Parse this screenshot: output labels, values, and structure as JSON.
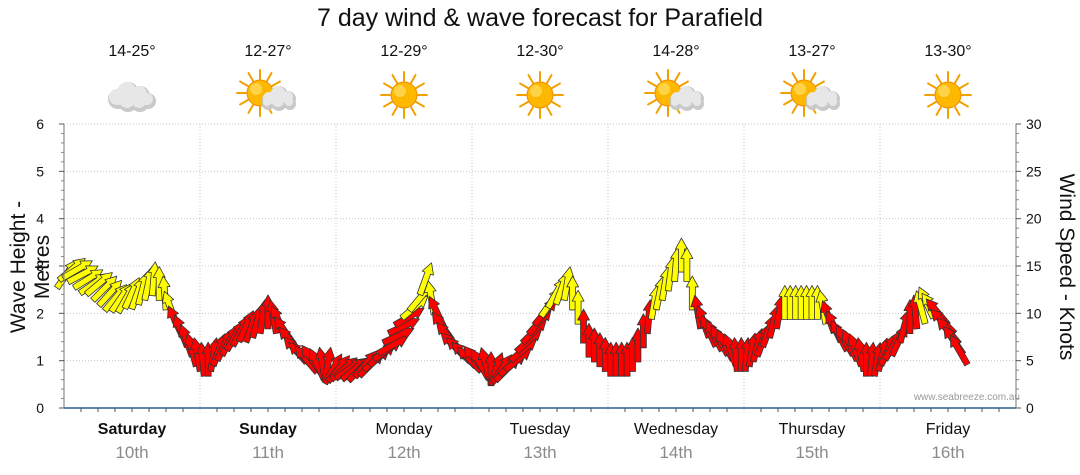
{
  "chart_data": {
    "type": "forecast-arrows",
    "title": "7 day wind & wave forecast for Parafield",
    "ylabel_left": "Wave Height - Metres",
    "ylabel_right": "Wind Speed - Knots",
    "ylim_left": [
      0,
      6
    ],
    "ylim_right": [
      0,
      30
    ],
    "yticks_left": [
      "0",
      "1",
      "2",
      "3",
      "4",
      "5",
      "6"
    ],
    "yticks_right": [
      "0",
      "5",
      "10",
      "15",
      "20",
      "25",
      "30"
    ],
    "days": [
      {
        "name": "Saturday",
        "date": "10th",
        "temp": "14-25°",
        "icon": "cloudy-icon",
        "bold": true
      },
      {
        "name": "Sunday",
        "date": "11th",
        "temp": "12-27°",
        "icon": "partly-cloudy-icon",
        "bold": true
      },
      {
        "name": "Monday",
        "date": "12th",
        "temp": "12-29°",
        "icon": "sunny-icon",
        "bold": false
      },
      {
        "name": "Tuesday",
        "date": "13th",
        "temp": "12-30°",
        "icon": "sunny-icon",
        "bold": false
      },
      {
        "name": "Wednesday",
        "date": "14th",
        "temp": "14-28°",
        "icon": "partly-cloudy-icon",
        "bold": false
      },
      {
        "name": "Thursday",
        "date": "15th",
        "temp": "13-27°",
        "icon": "partly-cloudy-icon",
        "bold": false
      },
      {
        "name": "Friday",
        "date": "16th",
        "temp": "13-30°",
        "icon": "sunny-icon",
        "bold": false
      }
    ],
    "wind_series": {
      "unit": "knots",
      "colors": {
        "light": "#ffff00",
        "strong": "#ff0000"
      },
      "arrows": [
        {
          "d": 0.02,
          "speed": 15,
          "dir": 35
        },
        {
          "d": 0.06,
          "speed": 15.5,
          "dir": 50
        },
        {
          "d": 0.1,
          "speed": 15.5,
          "dir": 60
        },
        {
          "d": 0.14,
          "speed": 15,
          "dir": 62
        },
        {
          "d": 0.18,
          "speed": 14.5,
          "dir": 58
        },
        {
          "d": 0.22,
          "speed": 14,
          "dir": 55
        },
        {
          "d": 0.26,
          "speed": 14,
          "dir": 50
        },
        {
          "d": 0.3,
          "speed": 13.5,
          "dir": 45
        },
        {
          "d": 0.34,
          "speed": 13,
          "dir": 42
        },
        {
          "d": 0.38,
          "speed": 12.5,
          "dir": 40
        },
        {
          "d": 0.42,
          "speed": 12.5,
          "dir": 35
        },
        {
          "d": 0.46,
          "speed": 12.5,
          "dir": 30
        },
        {
          "d": 0.5,
          "speed": 13,
          "dir": 25
        },
        {
          "d": 0.54,
          "speed": 13,
          "dir": 20
        },
        {
          "d": 0.58,
          "speed": 13.5,
          "dir": 15
        },
        {
          "d": 0.62,
          "speed": 14,
          "dir": 12
        },
        {
          "d": 0.66,
          "speed": 14.5,
          "dir": 5
        },
        {
          "d": 0.7,
          "speed": 14,
          "dir": 0
        },
        {
          "d": 0.74,
          "speed": 13,
          "dir": 355
        },
        {
          "d": 0.78,
          "speed": 11.5,
          "dir": -20
        },
        {
          "d": 0.82,
          "speed": 10,
          "dir": -25
        },
        {
          "d": 0.86,
          "speed": 9,
          "dir": -22
        },
        {
          "d": 0.9,
          "speed": 8,
          "dir": -20
        },
        {
          "d": 0.94,
          "speed": 7,
          "dir": -15
        },
        {
          "d": 0.98,
          "speed": 6.5,
          "dir": -10
        },
        {
          "d": 1.02,
          "speed": 6,
          "dir": -5
        },
        {
          "d": 1.06,
          "speed": 6,
          "dir": 0
        },
        {
          "d": 1.1,
          "speed": 6.5,
          "dir": 10
        },
        {
          "d": 1.14,
          "speed": 7,
          "dir": 20
        },
        {
          "d": 1.18,
          "speed": 7.5,
          "dir": 25
        },
        {
          "d": 1.22,
          "speed": 8,
          "dir": 28
        },
        {
          "d": 1.26,
          "speed": 8.5,
          "dir": 30
        },
        {
          "d": 1.3,
          "speed": 9,
          "dir": 28
        },
        {
          "d": 1.34,
          "speed": 9.5,
          "dir": 25
        },
        {
          "d": 1.38,
          "speed": 9.5,
          "dir": 20
        },
        {
          "d": 1.42,
          "speed": 10,
          "dir": 15
        },
        {
          "d": 1.46,
          "speed": 10.5,
          "dir": 8
        },
        {
          "d": 1.5,
          "speed": 11,
          "dir": 0
        },
        {
          "d": 1.54,
          "speed": 10.5,
          "dir": -10
        },
        {
          "d": 1.58,
          "speed": 10,
          "dir": -25
        },
        {
          "d": 1.62,
          "speed": 9,
          "dir": -35
        },
        {
          "d": 1.66,
          "speed": 8,
          "dir": -40
        },
        {
          "d": 1.7,
          "speed": 7,
          "dir": -42
        },
        {
          "d": 1.74,
          "speed": 6.5,
          "dir": -45
        },
        {
          "d": 1.78,
          "speed": 6,
          "dir": -40
        },
        {
          "d": 1.82,
          "speed": 6,
          "dir": -35
        },
        {
          "d": 1.86,
          "speed": 5.5,
          "dir": -25
        },
        {
          "d": 1.9,
          "speed": 5.5,
          "dir": -10
        },
        {
          "d": 1.94,
          "speed": 5.5,
          "dir": 10
        },
        {
          "d": 1.98,
          "speed": 5,
          "dir": 30
        },
        {
          "d": 2.02,
          "speed": 5,
          "dir": 40
        },
        {
          "d": 2.06,
          "speed": 5,
          "dir": 50
        },
        {
          "d": 2.1,
          "speed": 5,
          "dir": 55
        },
        {
          "d": 2.14,
          "speed": 5,
          "dir": 50
        },
        {
          "d": 2.18,
          "speed": 5,
          "dir": 45
        },
        {
          "d": 2.22,
          "speed": 5.5,
          "dir": 40
        },
        {
          "d": 2.26,
          "speed": 5.5,
          "dir": 45
        },
        {
          "d": 2.3,
          "speed": 6,
          "dir": 50
        },
        {
          "d": 2.34,
          "speed": 6.5,
          "dir": 50
        },
        {
          "d": 2.38,
          "speed": 7,
          "dir": 55
        },
        {
          "d": 2.42,
          "speed": 7.5,
          "dir": 60
        },
        {
          "d": 2.46,
          "speed": 8.5,
          "dir": 65
        },
        {
          "d": 2.5,
          "speed": 9.5,
          "dir": 65
        },
        {
          "d": 2.54,
          "speed": 10.5,
          "dir": 60
        },
        {
          "d": 2.58,
          "speed": 11.5,
          "dir": 50
        },
        {
          "d": 2.62,
          "speed": 12.5,
          "dir": 40
        },
        {
          "d": 2.66,
          "speed": 14.5,
          "dir": 20
        },
        {
          "d": 2.7,
          "speed": 12.5,
          "dir": -10
        },
        {
          "d": 2.74,
          "speed": 11,
          "dir": -25
        },
        {
          "d": 2.78,
          "speed": 9.5,
          "dir": -35
        },
        {
          "d": 2.82,
          "speed": 8.5,
          "dir": -40
        },
        {
          "d": 2.86,
          "speed": 7.5,
          "dir": -45
        },
        {
          "d": 2.9,
          "speed": 7,
          "dir": -45
        },
        {
          "d": 2.94,
          "speed": 6.5,
          "dir": -45
        },
        {
          "d": 2.98,
          "speed": 6,
          "dir": -45
        },
        {
          "d": 3.02,
          "speed": 6,
          "dir": -40
        },
        {
          "d": 3.06,
          "speed": 5.5,
          "dir": -30
        },
        {
          "d": 3.1,
          "speed": 5.5,
          "dir": -15
        },
        {
          "d": 3.14,
          "speed": 5,
          "dir": 0
        },
        {
          "d": 3.18,
          "speed": 5,
          "dir": 20
        },
        {
          "d": 3.22,
          "speed": 5,
          "dir": 35
        },
        {
          "d": 3.26,
          "speed": 5,
          "dir": 45
        },
        {
          "d": 3.3,
          "speed": 5.5,
          "dir": 50
        },
        {
          "d": 3.34,
          "speed": 6,
          "dir": 50
        },
        {
          "d": 3.38,
          "speed": 7,
          "dir": 50
        },
        {
          "d": 3.42,
          "speed": 8,
          "dir": 48
        },
        {
          "d": 3.46,
          "speed": 9,
          "dir": 45
        },
        {
          "d": 3.5,
          "speed": 10,
          "dir": 42
        },
        {
          "d": 3.54,
          "speed": 11,
          "dir": 40
        },
        {
          "d": 3.58,
          "speed": 12,
          "dir": 35
        },
        {
          "d": 3.62,
          "speed": 13,
          "dir": 30
        },
        {
          "d": 3.66,
          "speed": 13.5,
          "dir": 20
        },
        {
          "d": 3.7,
          "speed": 14,
          "dir": 10
        },
        {
          "d": 3.74,
          "speed": 13,
          "dir": 0
        },
        {
          "d": 3.78,
          "speed": 11.5,
          "dir": 0
        },
        {
          "d": 3.82,
          "speed": 9.5,
          "dir": 0
        },
        {
          "d": 3.86,
          "speed": 8,
          "dir": 0
        },
        {
          "d": 3.9,
          "speed": 7.5,
          "dir": 0
        },
        {
          "d": 3.94,
          "speed": 7,
          "dir": 0
        },
        {
          "d": 3.98,
          "speed": 6.5,
          "dir": 0
        },
        {
          "d": 4.02,
          "speed": 6,
          "dir": 0
        },
        {
          "d": 4.06,
          "speed": 6,
          "dir": 0
        },
        {
          "d": 4.1,
          "speed": 6,
          "dir": 0
        },
        {
          "d": 4.14,
          "speed": 6,
          "dir": 0
        },
        {
          "d": 4.18,
          "speed": 6.5,
          "dir": 0
        },
        {
          "d": 4.22,
          "speed": 7.5,
          "dir": 0
        },
        {
          "d": 4.26,
          "speed": 9,
          "dir": 0
        },
        {
          "d": 4.3,
          "speed": 10.5,
          "dir": 5
        },
        {
          "d": 4.34,
          "speed": 12,
          "dir": 10
        },
        {
          "d": 4.38,
          "speed": 13,
          "dir": 12
        },
        {
          "d": 4.42,
          "speed": 14,
          "dir": 10
        },
        {
          "d": 4.46,
          "speed": 15,
          "dir": 8
        },
        {
          "d": 4.5,
          "speed": 16,
          "dir": 5
        },
        {
          "d": 4.54,
          "speed": 17,
          "dir": 0
        },
        {
          "d": 4.58,
          "speed": 16,
          "dir": 0
        },
        {
          "d": 4.62,
          "speed": 13,
          "dir": 0
        },
        {
          "d": 4.66,
          "speed": 11,
          "dir": -10
        },
        {
          "d": 4.7,
          "speed": 10,
          "dir": -20
        },
        {
          "d": 4.74,
          "speed": 9,
          "dir": -25
        },
        {
          "d": 4.78,
          "speed": 8.5,
          "dir": -28
        },
        {
          "d": 4.82,
          "speed": 8,
          "dir": -30
        },
        {
          "d": 4.86,
          "speed": 7.5,
          "dir": -28
        },
        {
          "d": 4.9,
          "speed": 7,
          "dir": -20
        },
        {
          "d": 4.94,
          "speed": 6.5,
          "dir": -5
        },
        {
          "d": 4.98,
          "speed": 6.5,
          "dir": 0
        },
        {
          "d": 5.02,
          "speed": 6.5,
          "dir": 5
        },
        {
          "d": 5.06,
          "speed": 7,
          "dir": 10
        },
        {
          "d": 5.1,
          "speed": 7.5,
          "dir": 15
        },
        {
          "d": 5.14,
          "speed": 8,
          "dir": 20
        },
        {
          "d": 5.18,
          "speed": 9,
          "dir": 20
        },
        {
          "d": 5.22,
          "speed": 10,
          "dir": 15
        },
        {
          "d": 5.26,
          "speed": 11,
          "dir": 10
        },
        {
          "d": 5.3,
          "speed": 12,
          "dir": 0
        },
        {
          "d": 5.34,
          "speed": 12,
          "dir": 0
        },
        {
          "d": 5.38,
          "speed": 12,
          "dir": 0
        },
        {
          "d": 5.42,
          "speed": 12,
          "dir": 0
        },
        {
          "d": 5.46,
          "speed": 12,
          "dir": 0
        },
        {
          "d": 5.5,
          "speed": 12,
          "dir": 0
        },
        {
          "d": 5.54,
          "speed": 12,
          "dir": 0
        },
        {
          "d": 5.58,
          "speed": 11.5,
          "dir": -10
        },
        {
          "d": 5.62,
          "speed": 10.5,
          "dir": -20
        },
        {
          "d": 5.66,
          "speed": 9.5,
          "dir": -25
        },
        {
          "d": 5.7,
          "speed": 8.5,
          "dir": -28
        },
        {
          "d": 5.74,
          "speed": 8,
          "dir": -30
        },
        {
          "d": 5.78,
          "speed": 7.5,
          "dir": -25
        },
        {
          "d": 5.82,
          "speed": 7,
          "dir": -20
        },
        {
          "d": 5.86,
          "speed": 6.5,
          "dir": -10
        },
        {
          "d": 5.9,
          "speed": 6,
          "dir": 0
        },
        {
          "d": 5.94,
          "speed": 6,
          "dir": 5
        },
        {
          "d": 5.98,
          "speed": 6,
          "dir": 10
        },
        {
          "d": 6.02,
          "speed": 6.5,
          "dir": 15
        },
        {
          "d": 6.06,
          "speed": 7,
          "dir": 25
        },
        {
          "d": 6.1,
          "speed": 7.5,
          "dir": 30
        },
        {
          "d": 6.14,
          "speed": 8,
          "dir": 25
        },
        {
          "d": 6.18,
          "speed": 9.5,
          "dir": 15
        },
        {
          "d": 6.22,
          "speed": 10.5,
          "dir": 0
        },
        {
          "d": 6.26,
          "speed": 11,
          "dir": -5
        },
        {
          "d": 6.3,
          "speed": 11.5,
          "dir": -15
        },
        {
          "d": 6.34,
          "speed": 12,
          "dir": -25
        },
        {
          "d": 6.38,
          "speed": 11.5,
          "dir": -35
        },
        {
          "d": 6.42,
          "speed": 11,
          "dir": -40
        },
        {
          "d": 6.46,
          "speed": 10,
          "dir": -45
        },
        {
          "d": 6.5,
          "speed": 9,
          "dir": -40
        },
        {
          "d": 6.54,
          "speed": 8,
          "dir": -35
        },
        {
          "d": 6.58,
          "speed": 7,
          "dir": -30
        }
      ]
    },
    "watermark": "www.seabreeze.com.au"
  }
}
